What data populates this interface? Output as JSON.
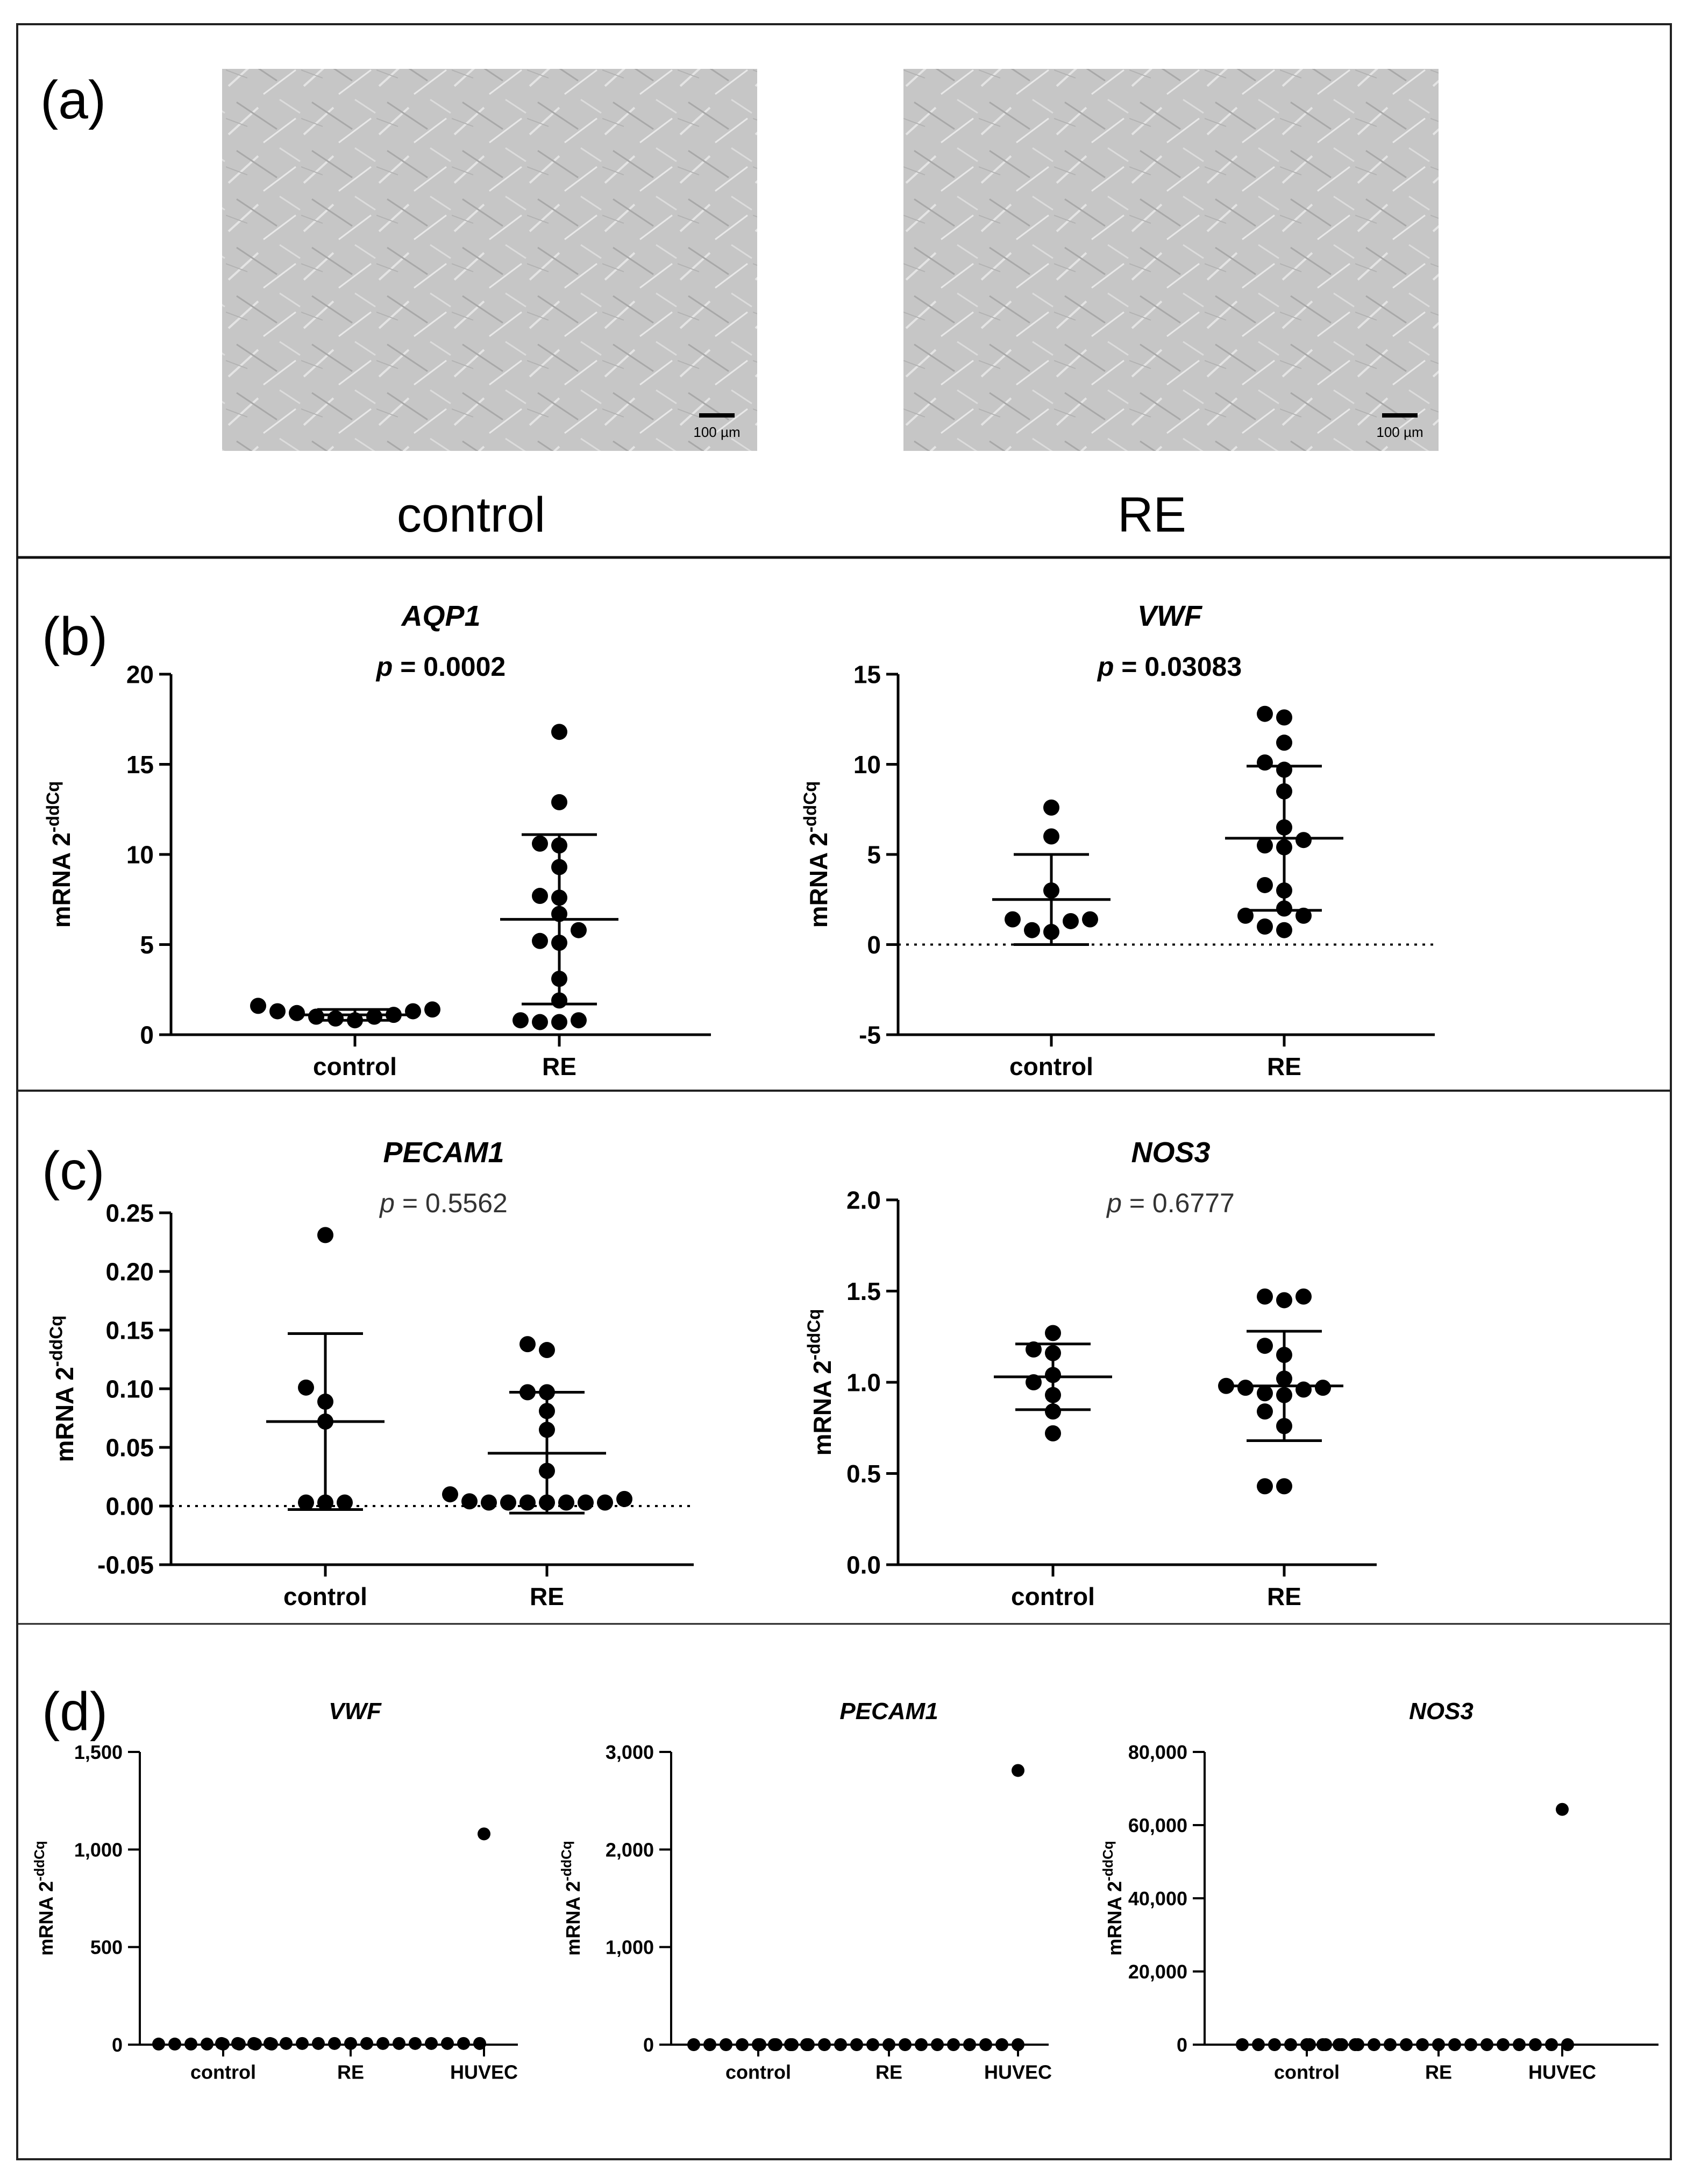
{
  "panels": {
    "a": {
      "label": "(a)",
      "images": [
        {
          "caption": "control",
          "scale_bar": "100 µm"
        },
        {
          "caption": "RE",
          "scale_bar": "100 µm"
        }
      ]
    },
    "b": {
      "label": "(b)"
    },
    "c": {
      "label": "(c)"
    },
    "d": {
      "label": "(d)"
    }
  },
  "chart_data": [
    {
      "id": "b-aqp1",
      "type": "scatter",
      "title": "AQP1",
      "p_prefix": "p",
      "p_value": " = 0.0002",
      "ylabel": "mRNA 2",
      "ylabel_sup": "-ddCq",
      "categories": [
        "control",
        "RE"
      ],
      "ylim": [
        0,
        20
      ],
      "yticks": [
        0,
        5,
        10,
        15,
        20
      ],
      "tick_labels": [
        "0",
        "5",
        "10",
        "15",
        "20"
      ],
      "zero_line": false,
      "groups": [
        {
          "name": "control",
          "mean": 1.1,
          "sd_low": 0.8,
          "sd_high": 1.4,
          "points": [
            1.6,
            1.0,
            0.9,
            1.3,
            1.2,
            1.1,
            1.4,
            1.3,
            0.8,
            1.0
          ]
        },
        {
          "name": "RE",
          "mean": 6.4,
          "sd_low": 1.7,
          "sd_high": 11.1,
          "points": [
            16.8,
            12.9,
            10.6,
            10.5,
            9.3,
            7.7,
            7.6,
            6.7,
            5.8,
            5.2,
            5.1,
            3.1,
            1.9,
            0.7,
            0.8,
            0.8,
            0.7
          ]
        }
      ]
    },
    {
      "id": "b-vwf",
      "type": "scatter",
      "title": "VWF",
      "p_prefix": "p",
      "p_value": " = 0.03083",
      "ylabel": "mRNA 2",
      "ylabel_sup": "-ddCq",
      "categories": [
        "control",
        "RE"
      ],
      "ylim": [
        -5,
        15
      ],
      "yticks": [
        -5,
        0,
        5,
        10,
        15
      ],
      "tick_labels": [
        "-5",
        "0",
        "5",
        "10",
        "15"
      ],
      "zero_line": true,
      "groups": [
        {
          "name": "control",
          "mean": 2.5,
          "sd_low": 0.0,
          "sd_high": 5.0,
          "points": [
            7.6,
            6.0,
            3.0,
            1.3,
            1.4,
            0.8,
            1.4,
            0.7
          ]
        },
        {
          "name": "RE",
          "mean": 5.9,
          "sd_low": 1.9,
          "sd_high": 9.9,
          "points": [
            12.8,
            12.6,
            11.2,
            10.1,
            9.7,
            8.5,
            6.5,
            5.8,
            5.5,
            5.4,
            3.3,
            3.0,
            2.0,
            1.6,
            1.6,
            0.8,
            1.0
          ]
        }
      ]
    },
    {
      "id": "c-pecam1",
      "type": "scatter",
      "title": "PECAM1",
      "p_prefix": "p",
      "p_value": " = 0.5562",
      "p_bold": false,
      "ylabel": "mRNA 2",
      "ylabel_sup": "-ddCq",
      "categories": [
        "control",
        "RE"
      ],
      "ylim": [
        -0.05,
        0.25
      ],
      "yticks": [
        -0.05,
        0.0,
        0.05,
        0.1,
        0.15,
        0.2,
        0.25
      ],
      "tick_labels": [
        "-0.05",
        "0.00",
        "0.05",
        "0.10",
        "0.15",
        "0.20",
        "0.25"
      ],
      "zero_line": true,
      "groups": [
        {
          "name": "control",
          "mean": 0.072,
          "sd_low": -0.003,
          "sd_high": 0.147,
          "points": [
            0.231,
            0.101,
            0.089,
            0.072,
            0.003,
            0.003,
            0.003
          ]
        },
        {
          "name": "RE",
          "mean": 0.045,
          "sd_low": -0.006,
          "sd_high": 0.097,
          "points": [
            0.138,
            0.133,
            0.097,
            0.097,
            0.081,
            0.065,
            0.03,
            0.01,
            0.006,
            0.004,
            0.003,
            0.003,
            0.003,
            0.003,
            0.003,
            0.003,
            0.003
          ]
        }
      ]
    },
    {
      "id": "c-nos3",
      "type": "scatter",
      "title": "NOS3",
      "p_prefix": "p",
      "p_value": " = 0.6777",
      "p_bold": false,
      "ylabel": "mRNA 2",
      "ylabel_sup": "-ddCq",
      "categories": [
        "control",
        "RE"
      ],
      "ylim": [
        0.0,
        2.0
      ],
      "yticks": [
        0.0,
        0.5,
        1.0,
        1.5,
        2.0
      ],
      "tick_labels": [
        "0.0",
        "0.5",
        "1.0",
        "1.5",
        "2.0"
      ],
      "zero_line": false,
      "groups": [
        {
          "name": "control",
          "mean": 1.03,
          "sd_low": 0.85,
          "sd_high": 1.21,
          "points": [
            1.27,
            1.18,
            1.16,
            1.04,
            1.0,
            0.93,
            0.84,
            0.72
          ]
        },
        {
          "name": "RE",
          "mean": 0.98,
          "sd_low": 0.68,
          "sd_high": 1.28,
          "points": [
            1.47,
            1.47,
            1.45,
            1.2,
            1.15,
            1.02,
            0.98,
            0.97,
            0.97,
            0.96,
            0.94,
            0.93,
            0.84,
            0.76,
            0.43,
            0.43
          ]
        }
      ]
    },
    {
      "id": "d-vwf",
      "type": "scatter",
      "title": "VWF",
      "ylabel": "mRNA 2",
      "ylabel_sup": "-ddCq",
      "categories": [
        "control",
        "RE",
        "HUVEC"
      ],
      "ylim": [
        0,
        1500
      ],
      "yticks": [
        0,
        500,
        1000,
        1500
      ],
      "tick_labels": [
        "0",
        "500",
        "1,000",
        "1,500"
      ],
      "zero_line": false,
      "groups": [
        {
          "name": "control",
          "points": [
            3,
            3,
            3,
            3,
            3,
            3,
            3,
            3
          ]
        },
        {
          "name": "RE",
          "points": [
            6,
            6,
            6,
            6,
            6,
            6,
            6,
            6,
            6,
            6,
            6,
            6,
            6,
            6,
            6,
            6,
            6
          ]
        },
        {
          "name": "HUVEC",
          "points": [
            1080
          ]
        }
      ]
    },
    {
      "id": "d-pecam1",
      "type": "scatter",
      "title": "PECAM1",
      "ylabel": "mRNA 2",
      "ylabel_sup": "-ddCq",
      "categories": [
        "control",
        "RE",
        "HUVEC"
      ],
      "ylim": [
        0,
        3000
      ],
      "yticks": [
        0,
        1000,
        2000,
        3000
      ],
      "tick_labels": [
        "0",
        "1,000",
        "2,000",
        "3,000"
      ],
      "zero_line": false,
      "groups": [
        {
          "name": "control",
          "points": [
            0,
            0,
            0,
            0,
            0,
            0,
            0,
            0
          ]
        },
        {
          "name": "RE",
          "points": [
            0,
            0,
            0,
            0,
            0,
            0,
            0,
            0,
            0,
            0,
            0,
            0,
            0,
            0,
            0,
            0,
            0
          ]
        },
        {
          "name": "HUVEC",
          "points": [
            2810
          ]
        }
      ]
    },
    {
      "id": "d-nos3",
      "type": "scatter",
      "title": "NOS3",
      "ylabel": "mRNA 2",
      "ylabel_sup": "-ddCq",
      "categories": [
        "control",
        "RE",
        "HUVEC"
      ],
      "ylim": [
        0,
        80000
      ],
      "yticks": [
        0,
        20000,
        40000,
        60000,
        80000
      ],
      "tick_labels": [
        "0",
        "20,000",
        "40,000",
        "60,000",
        "80,000"
      ],
      "zero_line": false,
      "groups": [
        {
          "name": "control",
          "points": [
            0,
            0,
            0,
            0,
            0,
            0,
            0,
            0
          ]
        },
        {
          "name": "RE",
          "points": [
            0,
            0,
            0,
            0,
            0,
            0,
            0,
            0,
            0,
            0,
            0,
            0,
            0,
            0,
            0,
            0,
            0
          ]
        },
        {
          "name": "HUVEC",
          "points": [
            64300
          ]
        }
      ]
    }
  ]
}
